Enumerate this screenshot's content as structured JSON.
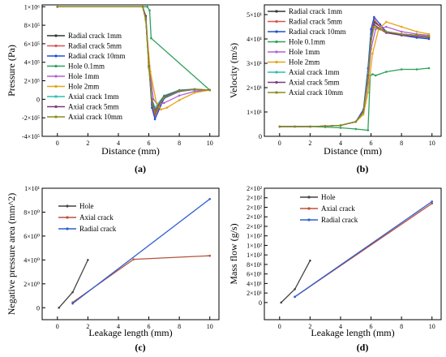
{
  "chart_data": [
    {
      "type": "line",
      "panel_label": "(a)",
      "xlabel": "Distance (mm)",
      "ylabel": "Pressure (Pa)",
      "xlim": [
        -1,
        10.6
      ],
      "ylim": [
        -400000,
        1020000
      ],
      "xticks": [
        0,
        2,
        4,
        6,
        8,
        10
      ],
      "xtick_labels": [
        "0",
        "2",
        "4",
        "6",
        "8",
        "10"
      ],
      "yticks": [
        -400000,
        -200000,
        0,
        200000,
        400000,
        600000,
        800000,
        1000000
      ],
      "ytick_labels": [
        "-4×10⁵",
        "-2×10⁵",
        "0",
        "2×10⁵",
        "4×10⁵",
        "6×10⁵",
        "8×10⁵",
        "1×10⁶"
      ],
      "legend_position": "left",
      "series": [
        {
          "name": "Radial crack 1mm",
          "color": "#333333",
          "x": [
            0,
            5.6,
            5.8,
            6.0,
            6.2,
            6.4,
            7.0,
            8.0,
            9.0,
            10.0
          ],
          "values": [
            1000000,
            1000000,
            900000,
            400000,
            -30000,
            -150000,
            30000,
            95000,
            105000,
            100000
          ]
        },
        {
          "name": "Radial crack 5mm",
          "color": "#d9534f",
          "x": [
            0,
            5.6,
            5.8,
            6.0,
            6.2,
            6.4,
            7.0,
            8.0,
            9.0,
            10.0
          ],
          "values": [
            1000000,
            1000000,
            880000,
            380000,
            -60000,
            -180000,
            20000,
            90000,
            105000,
            100000
          ]
        },
        {
          "name": "Radial crack 10mm",
          "color": "#1f4fd8",
          "x": [
            0,
            5.6,
            5.8,
            6.0,
            6.2,
            6.4,
            7.0,
            8.0,
            9.0,
            10.0
          ],
          "values": [
            1000000,
            1000000,
            860000,
            360000,
            -90000,
            -215000,
            10000,
            85000,
            105000,
            100000
          ]
        },
        {
          "name": "Hole 0.1mm",
          "color": "#2ca05a",
          "x": [
            0,
            5.9,
            6.05,
            6.15,
            10.0
          ],
          "values": [
            1000000,
            1000000,
            960000,
            660000,
            100000
          ]
        },
        {
          "name": "Hole 1mm",
          "color": "#b060d6",
          "x": [
            0,
            5.6,
            5.8,
            6.0,
            6.3,
            6.6,
            7.0,
            8.0,
            9.0,
            10.0
          ],
          "values": [
            1000000,
            1000000,
            880000,
            400000,
            0,
            -60000,
            -40000,
            40000,
            85000,
            100000
          ]
        },
        {
          "name": "Hole 2mm",
          "color": "#e8a317",
          "x": [
            0,
            5.6,
            5.8,
            6.1,
            6.5,
            6.8,
            7.2,
            8.0,
            9.0,
            10.0
          ],
          "values": [
            1000000,
            1000000,
            850000,
            300000,
            -40000,
            -110000,
            -90000,
            -10000,
            70000,
            100000
          ]
        },
        {
          "name": "Axial crack 1mm",
          "color": "#2bbfb0",
          "x": [
            0,
            5.6,
            5.8,
            6.0,
            6.2,
            6.4,
            7.0,
            8.0,
            9.0,
            10.0
          ],
          "values": [
            1000000,
            1000000,
            870000,
            350000,
            0,
            -90000,
            40000,
            100000,
            110000,
            100000
          ]
        },
        {
          "name": "Axial crack 5mm",
          "color": "#7a3a7a",
          "x": [
            0,
            5.6,
            5.8,
            6.0,
            6.2,
            6.4,
            7.0,
            8.0,
            9.0,
            10.0
          ],
          "values": [
            1000000,
            1000000,
            870000,
            360000,
            0,
            -120000,
            30000,
            95000,
            108000,
            100000
          ]
        },
        {
          "name": "Axial crack 10mm",
          "color": "#8b8b1a",
          "x": [
            0,
            5.6,
            5.8,
            6.0,
            6.2,
            6.4,
            7.0,
            8.0,
            9.0,
            10.0
          ],
          "values": [
            1000000,
            1000000,
            860000,
            340000,
            -20000,
            -140000,
            20000,
            90000,
            106000,
            100000
          ]
        }
      ]
    },
    {
      "type": "line",
      "panel_label": "(b)",
      "xlabel": "Distance (mm)",
      "ylabel": "Velocity (m/s)",
      "xlim": [
        -1,
        10.6
      ],
      "ylim": [
        0,
        54
      ],
      "xticks": [
        0,
        2,
        4,
        6,
        8,
        10
      ],
      "xtick_labels": [
        "0",
        "2",
        "4",
        "6",
        "8",
        "10"
      ],
      "yticks": [
        0,
        10,
        20,
        30,
        40,
        50
      ],
      "ytick_labels": [
        "0",
        "1×10¹",
        "2×10¹",
        "3×10¹",
        "4×10¹",
        "5×10¹"
      ],
      "legend_position": "top-left",
      "series": [
        {
          "name": "Radial crack 1mm",
          "color": "#333333",
          "x": [
            0,
            1,
            2,
            3,
            4,
            5,
            5.5,
            5.8,
            6.0,
            6.2,
            6.6,
            7.0,
            8.0,
            9.0,
            9.8
          ],
          "values": [
            4,
            4,
            4,
            4.2,
            4.5,
            6,
            10,
            25,
            40,
            47,
            45,
            43,
            42,
            41.5,
            41
          ]
        },
        {
          "name": "Radial crack 5mm",
          "color": "#d9534f",
          "x": [
            0,
            1,
            2,
            3,
            4,
            5,
            5.5,
            5.8,
            6.0,
            6.2,
            6.6,
            7.0,
            8.0,
            9.0,
            9.8
          ],
          "values": [
            4,
            4,
            4,
            4.2,
            4.5,
            6,
            10,
            26,
            42,
            48,
            45,
            43,
            42,
            41.5,
            41
          ]
        },
        {
          "name": "Radial crack 10mm",
          "color": "#1f4fd8",
          "x": [
            0,
            1,
            2,
            3,
            4,
            5,
            5.5,
            5.8,
            6.0,
            6.2,
            6.6,
            7.0,
            8.0,
            9.0,
            9.8
          ],
          "values": [
            4,
            4,
            4,
            4.2,
            4.5,
            6,
            11,
            28,
            44,
            49,
            46,
            43,
            41.5,
            40.5,
            40
          ]
        },
        {
          "name": "Hole 0.1mm",
          "color": "#2ca05a",
          "x": [
            0,
            1,
            2,
            3,
            4,
            5,
            5.8,
            5.95,
            6.1,
            6.3,
            7.0,
            8.0,
            9.0,
            9.8
          ],
          "values": [
            4,
            4,
            4,
            3.8,
            3.5,
            3,
            2.5,
            25,
            25.5,
            25,
            26.5,
            27.5,
            27.5,
            28
          ]
        },
        {
          "name": "Hole 1mm",
          "color": "#b060d6",
          "x": [
            0,
            1,
            2,
            3,
            4,
            5,
            5.5,
            5.8,
            6.0,
            6.3,
            7.0,
            8.0,
            9.0,
            9.8
          ],
          "values": [
            4,
            4,
            4,
            4.2,
            4.5,
            6,
            10,
            22,
            36,
            44,
            45,
            43,
            42,
            41.5
          ]
        },
        {
          "name": "Hole 2mm",
          "color": "#e8a317",
          "x": [
            0,
            1,
            2,
            3,
            4,
            5,
            5.5,
            5.8,
            6.1,
            6.5,
            7.0,
            8.0,
            9.0,
            9.8
          ],
          "values": [
            4,
            4,
            4,
            4.2,
            4.5,
            6,
            9,
            18,
            34,
            44,
            47,
            45,
            43,
            42
          ]
        },
        {
          "name": "Axial crack 1mm",
          "color": "#2bbfb0",
          "x": [
            0,
            1,
            2,
            3,
            4,
            5,
            5.5,
            5.8,
            6.0,
            6.2,
            6.6,
            7.0,
            8.0,
            9.0,
            9.8
          ],
          "values": [
            4,
            4,
            4,
            4.2,
            4.5,
            6,
            10,
            26,
            41,
            46,
            44,
            43,
            42,
            41.5,
            41
          ]
        },
        {
          "name": "Axial crack 5mm",
          "color": "#7a3a7a",
          "x": [
            0,
            1,
            2,
            3,
            4,
            5,
            5.5,
            5.8,
            6.0,
            6.2,
            6.6,
            7.0,
            8.0,
            9.0,
            9.8
          ],
          "values": [
            4,
            4,
            4,
            4.2,
            4.5,
            6,
            10,
            25,
            40,
            46,
            44,
            42.5,
            41.5,
            41,
            40.5
          ]
        },
        {
          "name": "Axial crack 10mm",
          "color": "#8b8b1a",
          "x": [
            0,
            1,
            2,
            3,
            4,
            5,
            5.5,
            5.8,
            6.0,
            6.2,
            6.6,
            7.0,
            8.0,
            9.0,
            9.8
          ],
          "values": [
            4,
            4,
            4,
            4.2,
            4.5,
            6,
            10,
            24,
            39,
            45,
            44,
            43,
            42,
            41.5,
            41
          ]
        }
      ]
    },
    {
      "type": "line",
      "panel_label": "(c)",
      "xlabel": "Leakage length (mm)",
      "ylabel": "Negative pressure area (mm^2)",
      "xlim": [
        -1,
        10.6
      ],
      "ylim": [
        -1,
        10
      ],
      "xticks": [
        0,
        2,
        4,
        6,
        8,
        10
      ],
      "xtick_labels": [
        "0",
        "2",
        "4",
        "6",
        "8",
        "10"
      ],
      "yticks": [
        0,
        2,
        4,
        6,
        8,
        10
      ],
      "ytick_labels": [
        "0",
        "2×10⁰",
        "4×10⁰",
        "6×10⁰",
        "8×10⁰",
        "1×10¹"
      ],
      "legend_position": "top-left",
      "series": [
        {
          "name": "Hole",
          "color": "#444444",
          "x": [
            0.1,
            1,
            2
          ],
          "values": [
            0,
            1.3,
            4.0
          ]
        },
        {
          "name": "Axial crack",
          "color": "#b5533c",
          "x": [
            1,
            5,
            10
          ],
          "values": [
            0.45,
            4.05,
            4.35
          ]
        },
        {
          "name": "Radial crack",
          "color": "#2e5fd0",
          "x": [
            1,
            10
          ],
          "values": [
            0.35,
            9.1
          ]
        }
      ]
    },
    {
      "type": "line",
      "panel_label": "(d)",
      "xlabel": "Leakage length (mm)",
      "ylabel": "Mass flow (g/s)",
      "xlim": [
        -1,
        10.6
      ],
      "ylim": [
        -0.9,
        6
      ],
      "xticks": [
        0,
        2,
        4,
        6,
        8,
        10
      ],
      "xtick_labels": [
        "0",
        "2",
        "4",
        "6",
        "8",
        "10"
      ],
      "yticks": [
        0,
        0.5,
        1,
        1.5,
        2,
        2.5,
        3,
        3.5,
        4,
        4.5,
        5,
        5.5,
        6
      ],
      "ytick_labels": [
        "0",
        "2×10¹",
        "4×10¹",
        "6×10¹",
        "8×10¹",
        "1×10²",
        "1×10²",
        "1×10²",
        "2×10²",
        "2×10²",
        "2×10²",
        "2×10²",
        "2×10²"
      ],
      "legend_position": "top-left",
      "series": [
        {
          "name": "Hole",
          "color": "#444444",
          "x": [
            0.1,
            1,
            2
          ],
          "values": [
            0,
            0.7,
            2.2
          ]
        },
        {
          "name": "Axial crack",
          "color": "#c0503a",
          "x": [
            1,
            10
          ],
          "values": [
            0.3,
            5.2
          ]
        },
        {
          "name": "Radial crack",
          "color": "#2e5fd0",
          "x": [
            1,
            10
          ],
          "values": [
            0.3,
            5.3
          ]
        }
      ]
    }
  ]
}
